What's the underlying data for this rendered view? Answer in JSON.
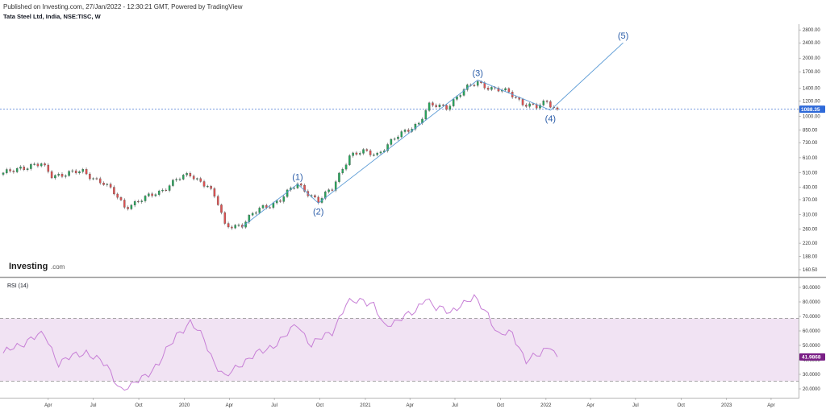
{
  "header": {
    "published": "Published on Investing.com, 27/Jan/2022 - 12:30:21 GMT, Powered by TradingView",
    "symbol": "Tata Steel Ltd, India, NSE:TISC, W"
  },
  "logo": {
    "main": "Investing",
    "suffix": ".com"
  },
  "colors": {
    "up": "#26a65b",
    "down": "#e05252",
    "wave": "#5b9bd5",
    "rsi": "#c77fd6",
    "rsi_band": "#f1e3f3",
    "price_tag": "#2f6ad9",
    "rsi_tag": "#7a1f86"
  },
  "chart_data": {
    "type": "candlestick",
    "price_panel": {
      "scale": "log",
      "y_ticks": [
        "2800.00",
        "2400.00",
        "2000.00",
        "1700.00",
        "1400.00",
        "1200.00",
        "1000.00",
        "850.00",
        "730.00",
        "610.00",
        "510.00",
        "430.00",
        "370.00",
        "310.00",
        "260.00",
        "220.00",
        "188.00",
        "160.50"
      ],
      "ylim": [
        150,
        3000
      ],
      "last_price": 1088.35,
      "last_price_label": "1088.35",
      "elliott_waves": [
        {
          "label": "(1)",
          "date": "2020-08-17",
          "price": 445
        },
        {
          "label": "(2)",
          "date": "2020-09-28",
          "price": 355
        },
        {
          "label": "(3)",
          "date": "2021-08-16",
          "price": 1540
        },
        {
          "label": "(4)",
          "date": "2022-01-10",
          "price": 1075
        },
        {
          "label": "(5)",
          "date": "2022-06-06",
          "price": 2400
        }
      ],
      "wave_path": [
        {
          "date": "2020-04-27",
          "price": 268
        },
        {
          "date": "2020-08-17",
          "price": 445
        },
        {
          "date": "2020-09-28",
          "price": 355
        },
        {
          "date": "2021-08-16",
          "price": 1540
        },
        {
          "date": "2022-01-10",
          "price": 1075
        },
        {
          "date": "2022-06-06",
          "price": 2400
        }
      ],
      "anchors": [
        {
          "date": "2018-12-31",
          "price": 500
        },
        {
          "date": "2019-02-04",
          "price": 545
        },
        {
          "date": "2019-03-18",
          "price": 560
        },
        {
          "date": "2019-04-08",
          "price": 495
        },
        {
          "date": "2019-06-10",
          "price": 515
        },
        {
          "date": "2019-07-22",
          "price": 450
        },
        {
          "date": "2019-08-19",
          "price": 380
        },
        {
          "date": "2019-09-02",
          "price": 340
        },
        {
          "date": "2019-10-14",
          "price": 375
        },
        {
          "date": "2019-11-11",
          "price": 405
        },
        {
          "date": "2019-12-16",
          "price": 470
        },
        {
          "date": "2020-01-13",
          "price": 495
        },
        {
          "date": "2020-02-17",
          "price": 440
        },
        {
          "date": "2020-03-09",
          "price": 350
        },
        {
          "date": "2020-03-23",
          "price": 270
        },
        {
          "date": "2020-04-27",
          "price": 275
        },
        {
          "date": "2020-06-01",
          "price": 330
        },
        {
          "date": "2020-07-13",
          "price": 370
        },
        {
          "date": "2020-08-17",
          "price": 445
        },
        {
          "date": "2020-09-28",
          "price": 362
        },
        {
          "date": "2020-10-26",
          "price": 420
        },
        {
          "date": "2020-11-30",
          "price": 625
        },
        {
          "date": "2020-12-28",
          "price": 650
        },
        {
          "date": "2021-01-25",
          "price": 640
        },
        {
          "date": "2021-03-01",
          "price": 760
        },
        {
          "date": "2021-04-19",
          "price": 930
        },
        {
          "date": "2021-05-10",
          "price": 1130
        },
        {
          "date": "2021-06-14",
          "price": 1120
        },
        {
          "date": "2021-07-19",
          "price": 1360
        },
        {
          "date": "2021-08-16",
          "price": 1500
        },
        {
          "date": "2021-09-13",
          "price": 1400
        },
        {
          "date": "2021-10-18",
          "price": 1320
        },
        {
          "date": "2021-11-15",
          "price": 1180
        },
        {
          "date": "2021-12-13",
          "price": 1110
        },
        {
          "date": "2022-01-03",
          "price": 1180
        },
        {
          "date": "2022-01-24",
          "price": 1088
        }
      ]
    },
    "rsi_panel": {
      "title": "RSI (14)",
      "y_ticks": [
        "90.0000",
        "80.0000",
        "70.0000",
        "60.0000",
        "50.0000",
        "40.0000",
        "30.0000",
        "20.0000"
      ],
      "ylim": [
        15,
        95
      ],
      "upper_band": 70,
      "lower_band": 30,
      "last_value": 41.9868,
      "last_value_label": "41.9868",
      "anchors": [
        {
          "date": "2018-12-31",
          "value": 44
        },
        {
          "date": "2019-02-25",
          "value": 55
        },
        {
          "date": "2019-03-25",
          "value": 57
        },
        {
          "date": "2019-04-22",
          "value": 38
        },
        {
          "date": "2019-06-17",
          "value": 46
        },
        {
          "date": "2019-07-29",
          "value": 35
        },
        {
          "date": "2019-08-26",
          "value": 20
        },
        {
          "date": "2019-09-16",
          "value": 21
        },
        {
          "date": "2019-10-07",
          "value": 28
        },
        {
          "date": "2019-11-11",
          "value": 37
        },
        {
          "date": "2019-12-16",
          "value": 58
        },
        {
          "date": "2020-01-13",
          "value": 65
        },
        {
          "date": "2020-02-10",
          "value": 55
        },
        {
          "date": "2020-03-02",
          "value": 38
        },
        {
          "date": "2020-03-23",
          "value": 27
        },
        {
          "date": "2020-04-20",
          "value": 37
        },
        {
          "date": "2020-06-08",
          "value": 46
        },
        {
          "date": "2020-07-20",
          "value": 55
        },
        {
          "date": "2020-08-17",
          "value": 65
        },
        {
          "date": "2020-09-14",
          "value": 50
        },
        {
          "date": "2020-10-26",
          "value": 60
        },
        {
          "date": "2020-11-23",
          "value": 78
        },
        {
          "date": "2020-12-28",
          "value": 82
        },
        {
          "date": "2021-01-18",
          "value": 78
        },
        {
          "date": "2021-02-08",
          "value": 62
        },
        {
          "date": "2021-03-15",
          "value": 70
        },
        {
          "date": "2021-04-12",
          "value": 72
        },
        {
          "date": "2021-05-03",
          "value": 84
        },
        {
          "date": "2021-05-24",
          "value": 76
        },
        {
          "date": "2021-06-21",
          "value": 72
        },
        {
          "date": "2021-07-12",
          "value": 79
        },
        {
          "date": "2021-08-09",
          "value": 82
        },
        {
          "date": "2021-09-06",
          "value": 72
        },
        {
          "date": "2021-09-27",
          "value": 57
        },
        {
          "date": "2021-10-25",
          "value": 58
        },
        {
          "date": "2021-11-22",
          "value": 40
        },
        {
          "date": "2021-12-20",
          "value": 43
        },
        {
          "date": "2022-01-10",
          "value": 51
        },
        {
          "date": "2022-01-24",
          "value": 42
        }
      ]
    },
    "x_axis": {
      "labels": [
        {
          "text": "Apr",
          "date": "2019-04-01"
        },
        {
          "text": "Jul",
          "date": "2019-07-01"
        },
        {
          "text": "Oct",
          "date": "2019-10-01"
        },
        {
          "text": "2020",
          "date": "2020-01-01"
        },
        {
          "text": "Apr",
          "date": "2020-04-01"
        },
        {
          "text": "Jul",
          "date": "2020-07-01"
        },
        {
          "text": "Oct",
          "date": "2020-10-01"
        },
        {
          "text": "2021",
          "date": "2021-01-01"
        },
        {
          "text": "Apr",
          "date": "2021-04-01"
        },
        {
          "text": "Jul",
          "date": "2021-07-01"
        },
        {
          "text": "Oct",
          "date": "2021-10-01"
        },
        {
          "text": "2022",
          "date": "2022-01-01"
        },
        {
          "text": "Apr",
          "date": "2022-04-01"
        },
        {
          "text": "Jul",
          "date": "2022-07-01"
        },
        {
          "text": "Oct",
          "date": "2022-10-01"
        },
        {
          "text": "2023",
          "date": "2023-01-01"
        },
        {
          "text": "Apr",
          "date": "2023-04-01"
        }
      ],
      "range": [
        "2018-12-31",
        "2023-05-20"
      ]
    }
  }
}
